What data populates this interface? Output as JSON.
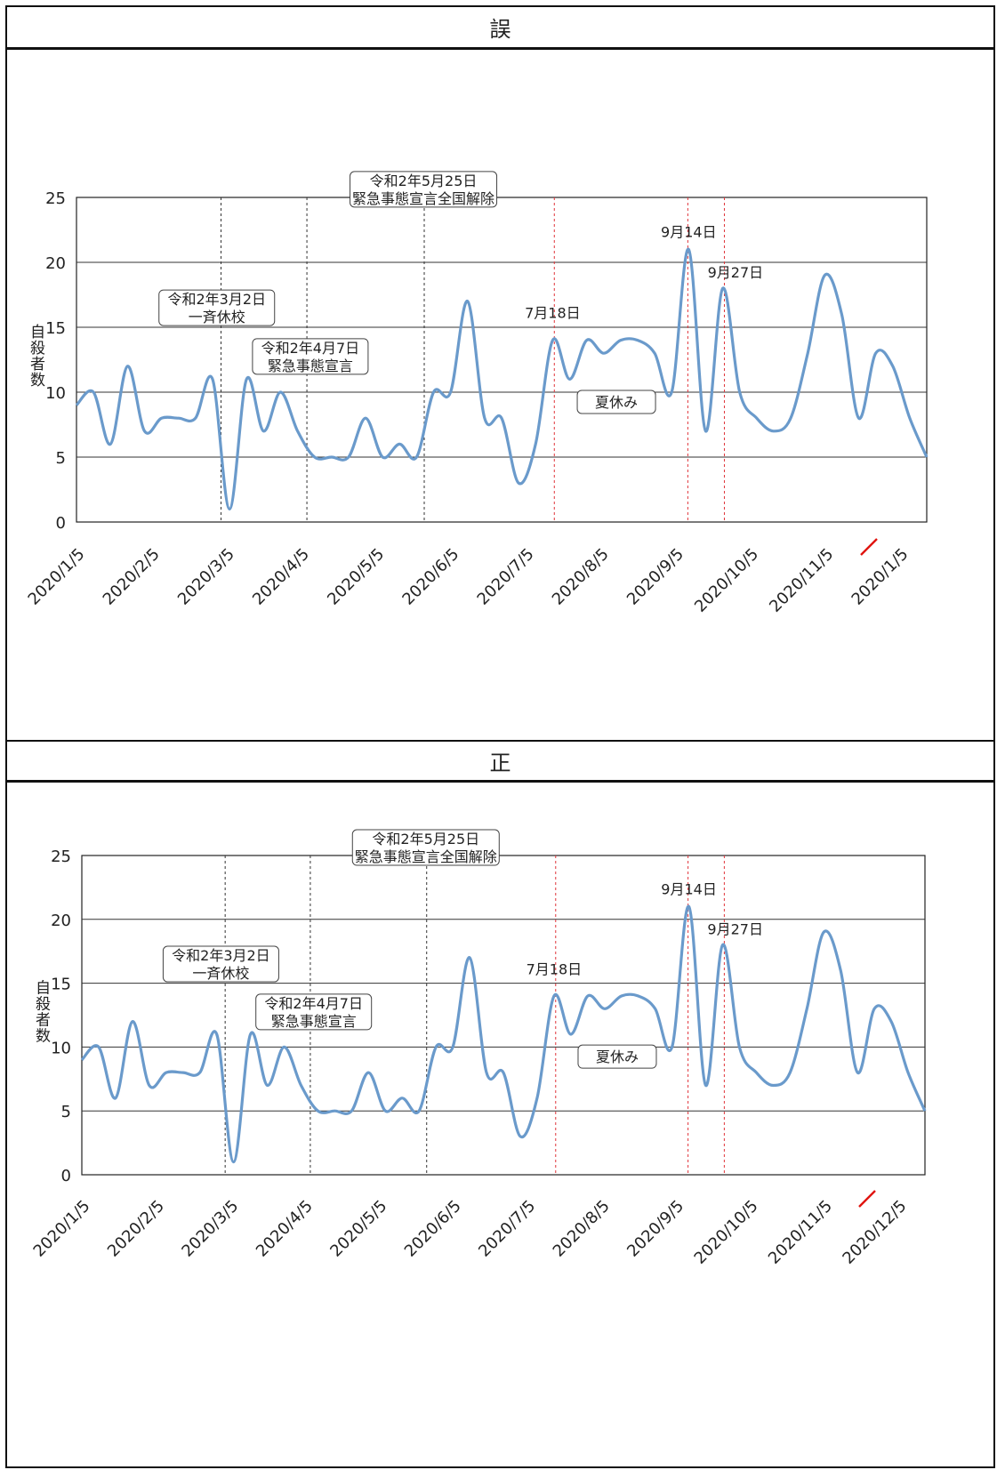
{
  "panels": [
    {
      "title": "誤"
    },
    {
      "title": "正"
    }
  ],
  "colors": {
    "line": "#6a9acb",
    "black_marker": "#333333",
    "red_marker": "#e0343a",
    "correction_mark": "#e0140f"
  },
  "chart_data": [
    {
      "type": "line",
      "panel": "誤",
      "ylabel": "自殺者数",
      "ylim": [
        0,
        25
      ],
      "yticks": [
        0,
        5,
        10,
        15,
        20,
        25
      ],
      "grid": "horizontal",
      "xlabels": [
        "2020/1/5",
        "2020/2/5",
        "2020/3/5",
        "2020/4/5",
        "2020/5/5",
        "2020/6/5",
        "2020/7/5",
        "2020/8/5",
        "2020/9/5",
        "2020/10/5",
        "2020/11/5",
        "2020/1/5"
      ],
      "correction_mark_on": "2020/1/5 (last)",
      "series": [
        {
          "values": [
            9,
            10,
            6,
            12,
            7,
            8,
            8,
            8,
            11,
            1,
            11,
            7,
            10,
            7,
            5,
            5,
            5,
            8,
            5,
            6,
            5,
            10,
            10,
            17,
            8,
            8,
            3,
            6,
            14,
            11,
            14,
            13,
            14,
            14,
            13,
            10,
            21,
            7,
            18,
            10,
            8,
            7,
            8,
            13,
            19,
            16,
            8,
            13,
            12,
            8,
            5
          ]
        }
      ],
      "annotations": [
        {
          "text": [
            "令和2年3月2日",
            "一斉休校"
          ],
          "style": "box"
        },
        {
          "text": [
            "令和2年4月7日",
            "緊急事態宣言"
          ],
          "style": "box"
        },
        {
          "text": [
            "令和2年5月25日",
            "緊急事態宣言全国解除"
          ],
          "style": "box"
        },
        {
          "text": [
            "7月18日"
          ],
          "style": "plain"
        },
        {
          "text": [
            "夏休み"
          ],
          "style": "box"
        },
        {
          "text": [
            "9月14日"
          ],
          "style": "plain"
        },
        {
          "text": [
            "9月27日"
          ],
          "style": "plain"
        }
      ],
      "markers": [
        {
          "date": "2020/3/2",
          "color": "black"
        },
        {
          "date": "2020/4/7",
          "color": "black"
        },
        {
          "date": "2020/5/25",
          "color": "black"
        },
        {
          "date": "2020/7/18",
          "color": "red"
        },
        {
          "date": "2020/9/14",
          "color": "red"
        },
        {
          "date": "2020/9/27",
          "color": "red"
        }
      ]
    },
    {
      "type": "line",
      "panel": "正",
      "ylabel": "自殺者数",
      "ylim": [
        0,
        25
      ],
      "yticks": [
        0,
        5,
        10,
        15,
        20,
        25
      ],
      "grid": "horizontal",
      "xlabels": [
        "2020/1/5",
        "2020/2/5",
        "2020/3/5",
        "2020/4/5",
        "2020/5/5",
        "2020/6/5",
        "2020/7/5",
        "2020/8/5",
        "2020/9/5",
        "2020/10/5",
        "2020/11/5",
        "2020/12/5"
      ],
      "correction_mark_on": "2020/12/5 (last)",
      "series": [
        {
          "values": [
            9,
            10,
            6,
            12,
            7,
            8,
            8,
            8,
            11,
            1,
            11,
            7,
            10,
            7,
            5,
            5,
            5,
            8,
            5,
            6,
            5,
            10,
            10,
            17,
            8,
            8,
            3,
            6,
            14,
            11,
            14,
            13,
            14,
            14,
            13,
            10,
            21,
            7,
            18,
            10,
            8,
            7,
            8,
            13,
            19,
            16,
            8,
            13,
            12,
            8,
            5
          ]
        }
      ],
      "annotations": [
        {
          "text": [
            "令和2年3月2日",
            "一斉休校"
          ],
          "style": "box"
        },
        {
          "text": [
            "令和2年4月7日",
            "緊急事態宣言"
          ],
          "style": "box"
        },
        {
          "text": [
            "令和2年5月25日",
            "緊急事態宣言全国解除"
          ],
          "style": "box"
        },
        {
          "text": [
            "7月18日"
          ],
          "style": "plain"
        },
        {
          "text": [
            "夏休み"
          ],
          "style": "box"
        },
        {
          "text": [
            "9月14日"
          ],
          "style": "plain"
        },
        {
          "text": [
            "9月27日"
          ],
          "style": "plain"
        }
      ],
      "markers": [
        {
          "date": "2020/3/2",
          "color": "black"
        },
        {
          "date": "2020/4/7",
          "color": "black"
        },
        {
          "date": "2020/5/25",
          "color": "black"
        },
        {
          "date": "2020/7/18",
          "color": "red"
        },
        {
          "date": "2020/9/14",
          "color": "red"
        },
        {
          "date": "2020/9/27",
          "color": "red"
        }
      ]
    }
  ]
}
